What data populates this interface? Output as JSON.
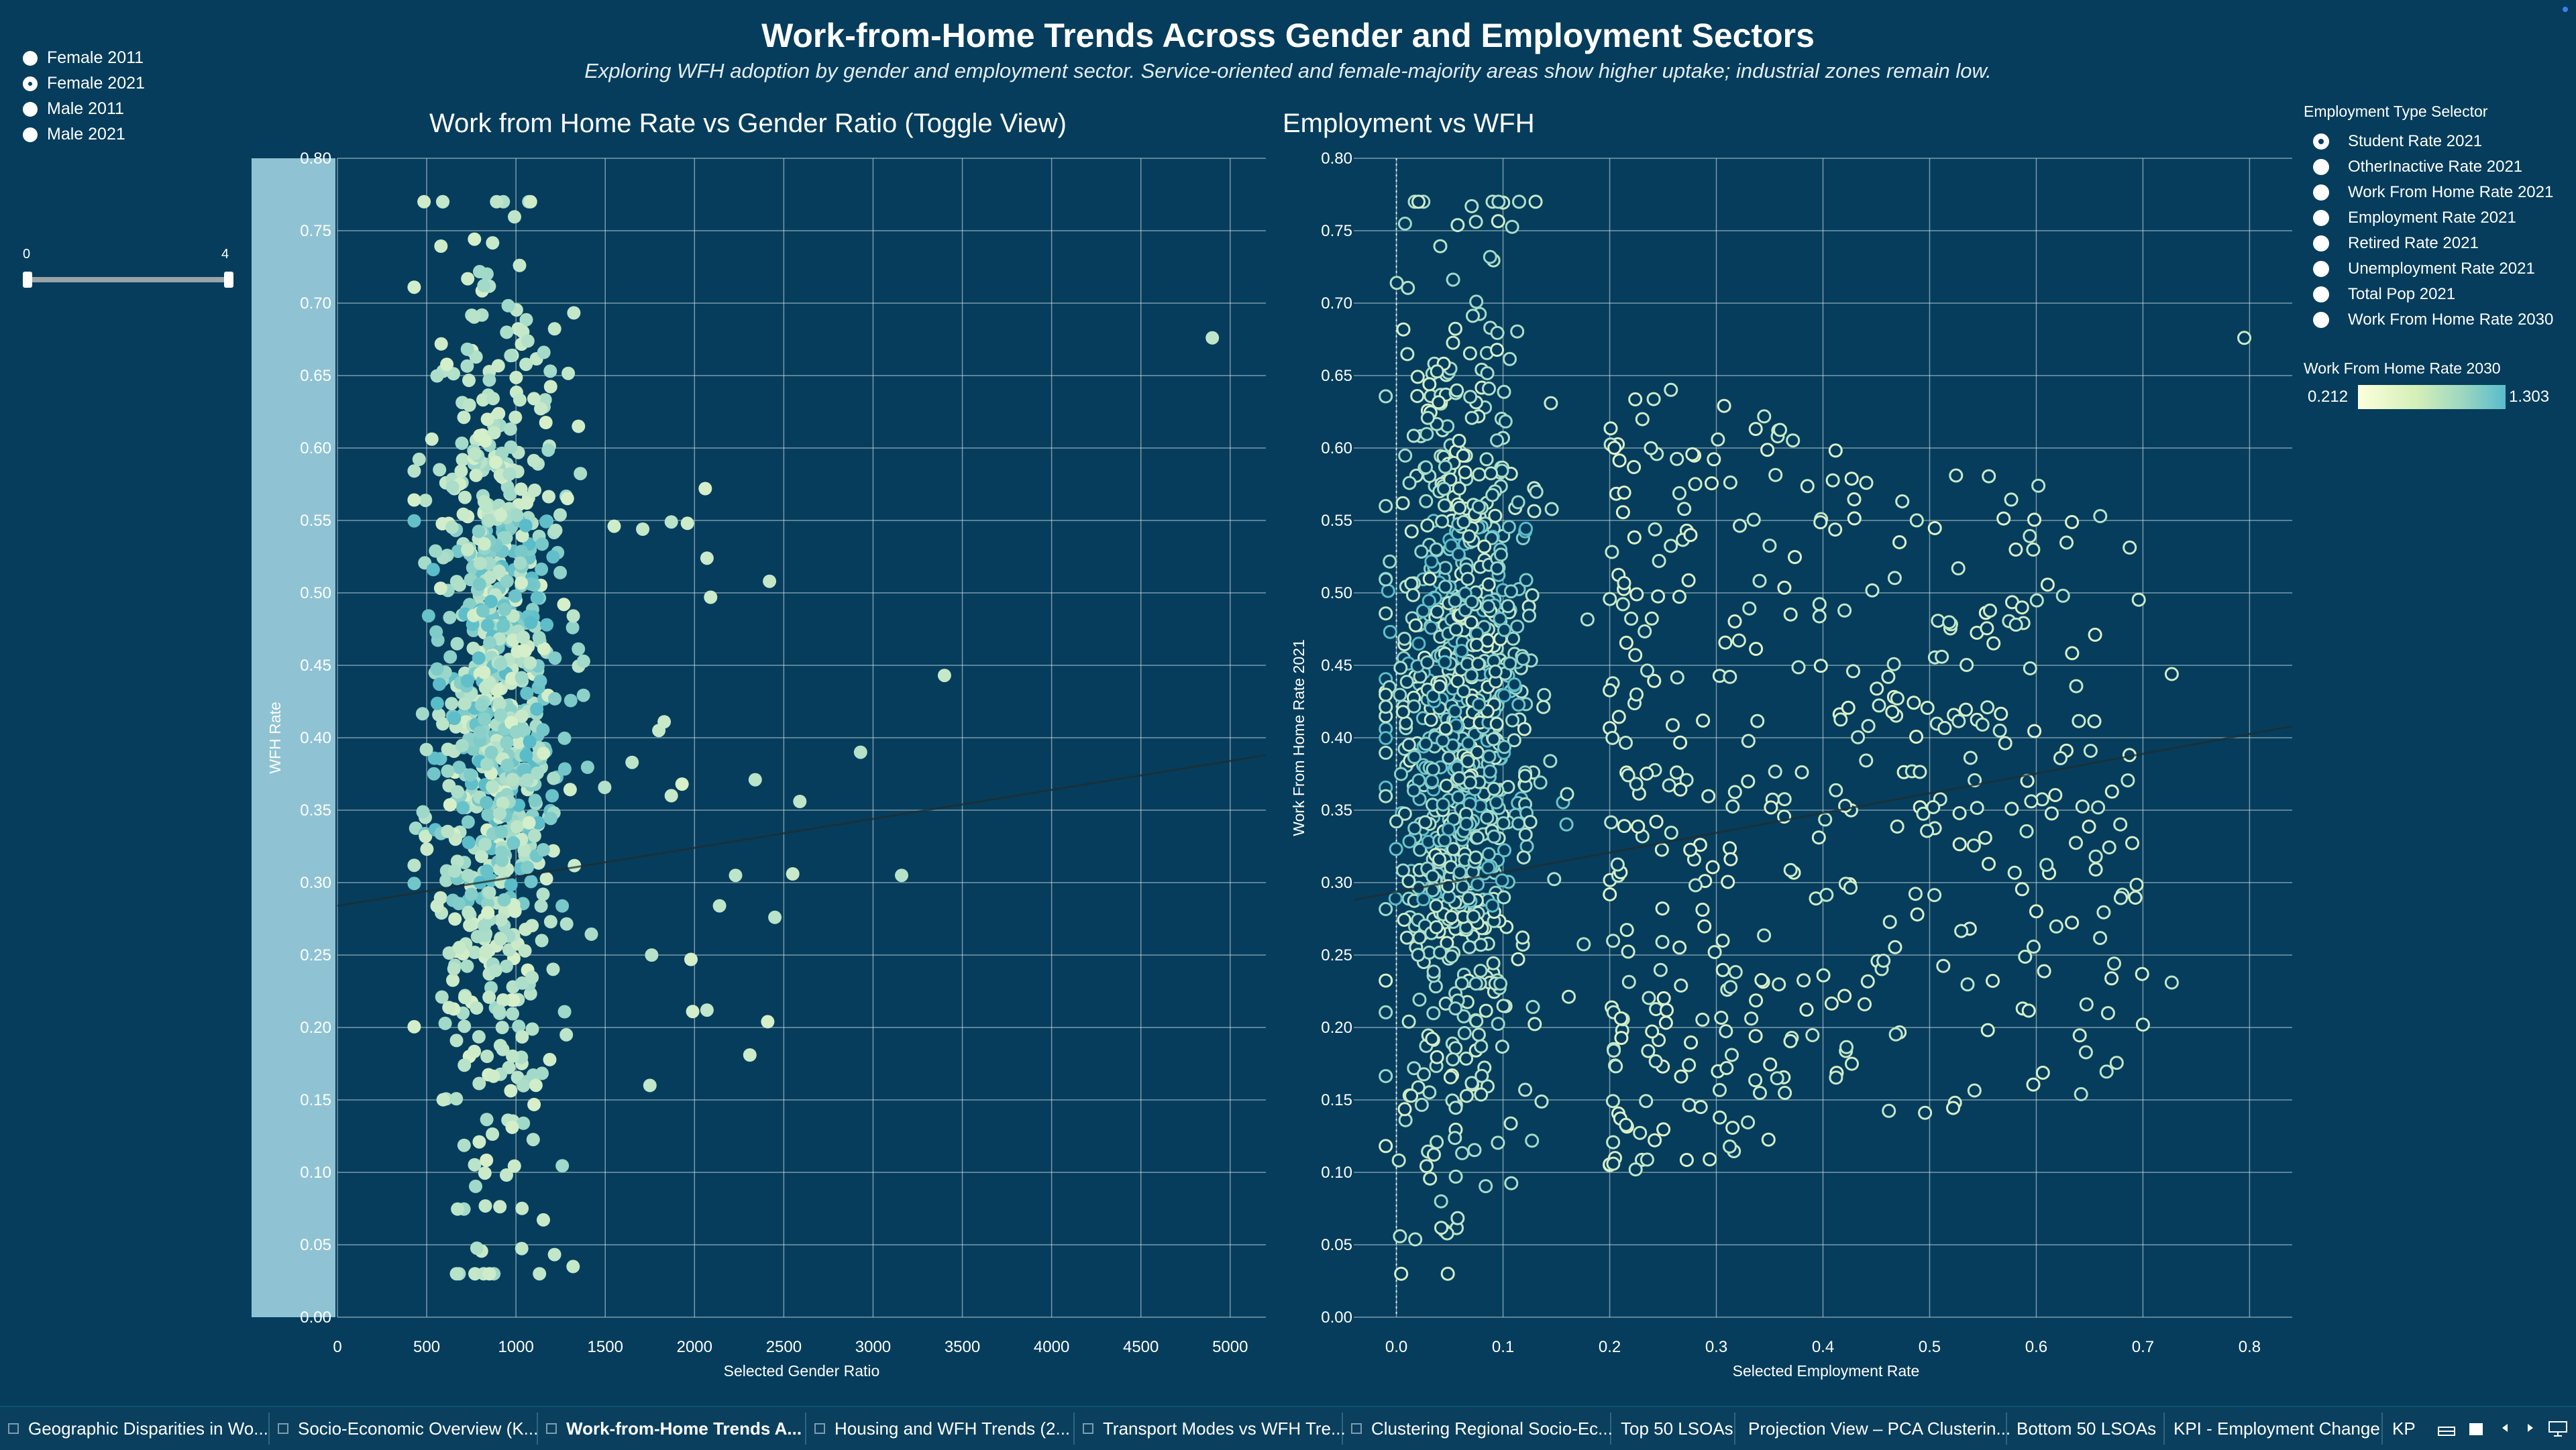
{
  "dashboard": {
    "title": "Work-from-Home Trends Across Gender and Employment Sectors",
    "subtitle": "Exploring WFH adoption by gender and employment sector. Service-oriented and female-majority areas show higher uptake; industrial zones remain low."
  },
  "gender_toggle": {
    "options": [
      {
        "label": "Female 2011",
        "selected": false
      },
      {
        "label": "Female 2021",
        "selected": true
      },
      {
        "label": "Male 2011",
        "selected": false
      },
      {
        "label": "Male 2021",
        "selected": false
      }
    ]
  },
  "range_slider": {
    "min_label": "0",
    "max_label": "4",
    "low": 0,
    "high": 4
  },
  "employment_selector": {
    "heading": "Employment Type Selector",
    "options": [
      {
        "label": "Student Rate 2021",
        "selected": true
      },
      {
        "label": "OtherInactive Rate 2021",
        "selected": false
      },
      {
        "label": "Work From Home Rate 2021",
        "selected": false
      },
      {
        "label": "Employment Rate 2021",
        "selected": false
      },
      {
        "label": "Retired Rate 2021",
        "selected": false
      },
      {
        "label": "Unemployment Rate 2021",
        "selected": false
      },
      {
        "label": "Total Pop 2021",
        "selected": false
      },
      {
        "label": "Work From Home Rate 2030",
        "selected": false
      }
    ]
  },
  "color_legend": {
    "heading": "Work From Home Rate 2030",
    "min": "0.212",
    "max": "1.303",
    "color_low": "#fcffdc",
    "color_high": "#58bccc"
  },
  "colors": {
    "background": "#063d5c",
    "highlight_band": "#8fc3d3",
    "grid": "#d7e4ea",
    "trend_line": "#1e2e30",
    "point_light": "#f3fbc9",
    "point_dark": "#3fb1c9"
  },
  "chart_data": [
    {
      "type": "scatter",
      "title": "Work from Home Rate vs Gender Ratio (Toggle View)",
      "xlabel": "Selected Gender Ratio",
      "ylabel": "WFH Rate",
      "xlim": [
        0,
        5200
      ],
      "ylim": [
        0,
        0.8
      ],
      "xticks": [
        0,
        500,
        1000,
        1500,
        2000,
        2500,
        3000,
        3500,
        4000,
        4500,
        5000
      ],
      "yticks": [
        "0.00",
        "0.05",
        "0.10",
        "0.15",
        "0.20",
        "0.25",
        "0.30",
        "0.35",
        "0.40",
        "0.45",
        "0.50",
        "0.55",
        "0.60",
        "0.65",
        "0.70",
        "0.75",
        "0.80"
      ],
      "grid": true,
      "trend_line": {
        "x": [
          0,
          5200
        ],
        "y": [
          0.284,
          0.388
        ]
      },
      "cluster": {
        "x_range": [
          430,
          1560
        ],
        "x_center": 880,
        "y_range": [
          0.03,
          0.77
        ],
        "y_center": 0.42,
        "marker": "filled"
      },
      "outliers": [
        {
          "x": 4900,
          "y": 0.676
        },
        {
          "x": 3400,
          "y": 0.443
        },
        {
          "x": 2930,
          "y": 0.39
        },
        {
          "x": 2420,
          "y": 0.508
        },
        {
          "x": 2060,
          "y": 0.572
        },
        {
          "x": 2070,
          "y": 0.524
        },
        {
          "x": 2090,
          "y": 0.497
        },
        {
          "x": 1870,
          "y": 0.549
        },
        {
          "x": 1960,
          "y": 0.548
        },
        {
          "x": 1710,
          "y": 0.544
        },
        {
          "x": 2590,
          "y": 0.356
        },
        {
          "x": 2340,
          "y": 0.371
        },
        {
          "x": 2550,
          "y": 0.306
        },
        {
          "x": 2230,
          "y": 0.305
        },
        {
          "x": 3160,
          "y": 0.305
        },
        {
          "x": 2140,
          "y": 0.284
        },
        {
          "x": 2450,
          "y": 0.276
        },
        {
          "x": 2310,
          "y": 0.181
        },
        {
          "x": 2410,
          "y": 0.204
        },
        {
          "x": 1980,
          "y": 0.247
        },
        {
          "x": 1990,
          "y": 0.211
        },
        {
          "x": 2070,
          "y": 0.212
        },
        {
          "x": 1930,
          "y": 0.368
        },
        {
          "x": 1870,
          "y": 0.36
        },
        {
          "x": 1800,
          "y": 0.405
        },
        {
          "x": 1830,
          "y": 0.411
        },
        {
          "x": 1750,
          "y": 0.16
        },
        {
          "x": 1760,
          "y": 0.25
        },
        {
          "x": 1320,
          "y": 0.035
        },
        {
          "x": 1350,
          "y": 0.615
        },
        {
          "x": 1550,
          "y": 0.546
        },
        {
          "x": 1650,
          "y": 0.383
        }
      ]
    },
    {
      "type": "scatter",
      "title": "Employment vs WFH",
      "xlabel": "Selected Employment Rate",
      "ylabel": "Work From Home Rate 2021",
      "xlim": [
        -0.04,
        0.84
      ],
      "ylim": [
        0,
        0.8
      ],
      "xticks": [
        "0.0",
        "0.1",
        "0.2",
        "0.3",
        "0.4",
        "0.5",
        "0.6",
        "0.7",
        "0.8"
      ],
      "yticks": [
        "0.00",
        "0.05",
        "0.10",
        "0.15",
        "0.20",
        "0.25",
        "0.30",
        "0.35",
        "0.40",
        "0.45",
        "0.50",
        "0.55",
        "0.60",
        "0.65",
        "0.70",
        "0.75",
        "0.80"
      ],
      "grid": true,
      "zero_reference_line": 0.0,
      "trend_line": {
        "x": [
          -0.04,
          0.84
        ],
        "y": [
          0.288,
          0.408
        ]
      },
      "cluster": {
        "x_range": [
          -0.01,
          0.2
        ],
        "x_center": 0.06,
        "y_range": [
          0.03,
          0.77
        ],
        "y_center": 0.4,
        "marker": "hollow"
      },
      "sparse_region": {
        "x_range": [
          0.2,
          0.7
        ],
        "y_range": [
          0.09,
          0.65
        ],
        "marker": "hollow"
      },
      "outliers": [
        {
          "x": 0.795,
          "y": 0.676
        },
        {
          "x": 0.727,
          "y": 0.444
        },
        {
          "x": 0.727,
          "y": 0.231
        },
        {
          "x": 0.66,
          "y": 0.553
        },
        {
          "x": 0.602,
          "y": 0.574
        },
        {
          "x": 0.7,
          "y": 0.202
        },
        {
          "x": 0.642,
          "y": 0.154
        },
        {
          "x": 0.625,
          "y": 0.498
        }
      ]
    }
  ],
  "tabs": [
    {
      "label": "Geographic Disparities in Wo...",
      "icon": true,
      "active": false
    },
    {
      "label": "Socio-Economic Overview (K...",
      "icon": true,
      "active": false
    },
    {
      "label": "Work-from-Home Trends A...",
      "icon": true,
      "active": true
    },
    {
      "label": "Housing and WFH Trends (2...",
      "icon": true,
      "active": false
    },
    {
      "label": "Transport Modes vs WFH Tre...",
      "icon": true,
      "active": false
    },
    {
      "label": "Clustering Regional Socio-Ec...",
      "icon": true,
      "active": false
    },
    {
      "label": "Top 50 LSOAs",
      "icon": false,
      "active": false
    },
    {
      "label": "Projection View – PCA Clusterin...",
      "icon": false,
      "active": false
    },
    {
      "label": "Bottom 50 LSOAs",
      "icon": false,
      "active": false
    },
    {
      "label": "KPI - Employment Change",
      "icon": false,
      "active": false
    },
    {
      "label": "KP",
      "icon": false,
      "active": false
    }
  ],
  "tab_nav": {
    "icons": [
      "grid-view-icon",
      "single-view-icon",
      "prev-icon",
      "next-icon",
      "presentation-icon"
    ]
  }
}
